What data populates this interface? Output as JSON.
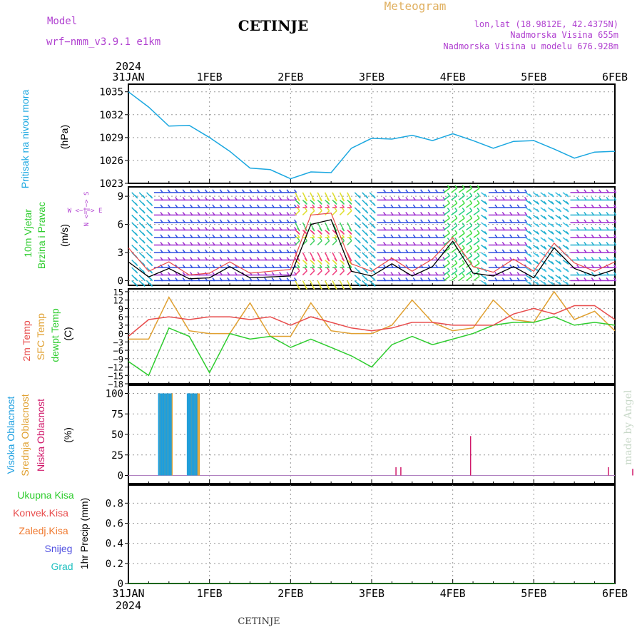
{
  "header": {
    "model_label": "Model",
    "model_name": "wrf−nmm_v3.9.1  e1km",
    "station": "CETINJE",
    "product": "Meteogram",
    "lonlat": "lon,lat (18.9812E, 42.4375N)",
    "elevation": "Nadmorska Visina 655m",
    "model_elevation": "Nadmorska Visina u modelu 676.928m",
    "footer_station": "CETINJE",
    "credit": "made by Angel"
  },
  "time_axis": {
    "year": "2024",
    "ticks": [
      "31JAN",
      "1FEB",
      "2FEB",
      "3FEB",
      "4FEB",
      "5FEB",
      "6FEB"
    ],
    "range_hours": [
      0,
      144
    ]
  },
  "colors": {
    "pressure": "#1aa7e0",
    "temp_2m": "#e84c4c",
    "temp_sfc": "#e0a030",
    "dewpoint": "#2ecc2e",
    "cloud_high": "#1a9ee0",
    "cloud_mid": "#e0a030",
    "cloud_low": "#d0186a",
    "wind_ms": "#000000",
    "wind_gust": "#e84c4c",
    "precip_total": "#2ecc2e",
    "precip_conv": "#e84c4c",
    "precip_frz": "#f07a30",
    "snow": "#5050e0",
    "graupel": "#20c0c0",
    "model_text": "#b040d0",
    "product_text": "#e0b060"
  },
  "panels": {
    "pressure": {
      "ylabel_1": "Pritisak na nivou mora",
      "unit": "(hPa)",
      "ticks": [
        "1023",
        "1026",
        "1029",
        "1032",
        "1035"
      ]
    },
    "wind": {
      "ylabel_1": "10m Vjetar",
      "ylabel_2": "Brzina i Pravac",
      "unit": "(m/s)",
      "ticks": [
        "0",
        "3",
        "6",
        "9"
      ],
      "compass": "W <−|−> E",
      "compass_ns": "N <−|−> S"
    },
    "temp": {
      "ylabel_1": "2m Temp",
      "ylabel_2": "SFC Temp",
      "ylabel_3": "dewpt Temp",
      "unit": "(C)",
      "ticks": [
        "−18",
        "−15",
        "−12",
        "−9",
        "−6",
        "−3",
        "0",
        "3",
        "6",
        "9",
        "12",
        "15"
      ]
    },
    "cloud": {
      "ylabel_1": "Visoka Oblacnost",
      "ylabel_2": "Srednja Oblacnost",
      "ylabel_3": "Niska Oblacnost",
      "unit": "(%)",
      "ticks": [
        "0",
        "25",
        "50",
        "75",
        "100"
      ]
    },
    "precip": {
      "ylabel_1": "Ukupna Kisa",
      "ylabel_2": "Konvek.Kisa",
      "ylabel_3": "Zaledj.Kisa",
      "ylabel_4": "Snijeg",
      "ylabel_5": "Grad",
      "unit": "1hr Precip (mm)",
      "ticks": [
        "0",
        "0.2",
        "0.4",
        "0.6",
        "0.8"
      ]
    }
  },
  "chart_data": {
    "type": "line",
    "x_hours": [
      0,
      6,
      12,
      18,
      24,
      30,
      36,
      42,
      48,
      54,
      60,
      66,
      72,
      78,
      84,
      90,
      96,
      102,
      108,
      114,
      120,
      126,
      132,
      138,
      144
    ],
    "pressure_hpa": [
      1035.0,
      1033.0,
      1030.5,
      1030.6,
      1029.0,
      1027.2,
      1025.0,
      1024.8,
      1023.6,
      1024.5,
      1024.4,
      1027.6,
      1028.9,
      1028.8,
      1029.3,
      1028.6,
      1029.5,
      1028.6,
      1027.6,
      1028.5,
      1028.6,
      1027.5,
      1026.3,
      1027.1,
      1027.2
    ],
    "wind_speed_ms": [
      2.0,
      0.4,
      1.3,
      0.2,
      0.3,
      1.5,
      0.3,
      0.4,
      0.5,
      6.0,
      6.5,
      1.0,
      0.5,
      1.8,
      0.5,
      1.5,
      4.2,
      0.8,
      0.5,
      1.5,
      0.3,
      3.5,
      1.3,
      0.5,
      1.2
    ],
    "wind_gust_ms": [
      3.5,
      1.0,
      2.0,
      0.6,
      0.8,
      2.0,
      0.8,
      1.0,
      1.2,
      7.0,
      7.2,
      1.8,
      1.0,
      2.4,
      1.0,
      2.3,
      4.6,
      1.5,
      0.9,
      2.3,
      1.0,
      4.0,
      1.9,
      1.0,
      2.0
    ],
    "wind_pattern": {
      "westerly_bands_hours": [
        [
          0,
          48
        ],
        [
          72,
          144
        ]
      ],
      "calm_easterly_hours": [
        [
          48,
          70
        ],
        [
          93,
          105
        ],
        [
          116,
          130
        ]
      ]
    },
    "temp_2m_c": [
      -1,
      5,
      6,
      5,
      6,
      6,
      5,
      6,
      3,
      6,
      4,
      2,
      1,
      2,
      4,
      4,
      3,
      3,
      3,
      7,
      9,
      7,
      10,
      10,
      5
    ],
    "temp_sfc_c": [
      -2,
      -2,
      13,
      1,
      0,
      0,
      11,
      -1,
      -1,
      11,
      1,
      0,
      0,
      3,
      12,
      4,
      1,
      2,
      12,
      5,
      4,
      15,
      5,
      8,
      1
    ],
    "dewpoint_c": [
      -10,
      -15,
      2,
      -1,
      -14,
      0,
      -2,
      -1,
      -5,
      -2,
      -5,
      -8,
      -12,
      -4,
      -1,
      -4,
      -2,
      0,
      3,
      4,
      4,
      6,
      3,
      4,
      3
    ],
    "cloud_high_pct": {
      "bursts_hours": [
        [
          9,
          13
        ],
        [
          17.5,
          20.5
        ]
      ],
      "value": 100
    },
    "cloud_mid_pct": {
      "bursts_hours": [
        [
          9,
          13
        ],
        [
          17.5,
          21
        ]
      ],
      "value": 100
    },
    "cloud_low_pct": {
      "spikes": [
        [
          16.5,
          10
        ],
        [
          16.8,
          10
        ],
        [
          21.1,
          48
        ],
        [
          29.6,
          10
        ],
        [
          31.1,
          8
        ]
      ]
    },
    "precip_mm": {
      "total": 0,
      "convective": 0,
      "freezing": 0,
      "snow": 0,
      "graupel": 0
    },
    "ylim_pressure": [
      1023,
      1036
    ],
    "ylim_wind": [
      -0.5,
      10
    ],
    "ylim_temp": [
      -18,
      16
    ],
    "ylim_cloud": [
      -10,
      110
    ],
    "ylim_precip": [
      0,
      0.98
    ]
  }
}
